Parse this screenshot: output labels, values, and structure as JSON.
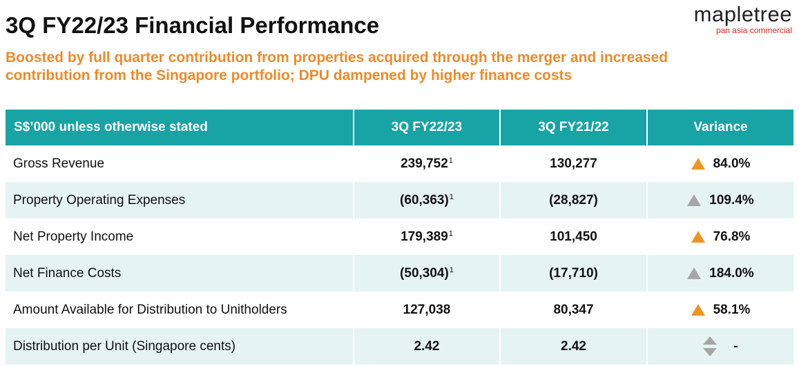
{
  "title": "3Q FY22/23 Financial Performance",
  "logo": {
    "word": "mapletree",
    "sub": "pan asia commercial"
  },
  "subtitle_line1": "Boosted by full quarter contribution from properties acquired through the merger and increased",
  "subtitle_line2": "contribution from the Singapore portfolio; DPU dampened by higher finance costs",
  "colors": {
    "accent": "#ee8a2a",
    "header_bg": "#18a3a5",
    "row_alt": "#e6f3f3",
    "up_arrow": "#f0941e",
    "neutral_arrow": "#a6a6a6"
  },
  "table": {
    "headers": [
      "S$’000 unless otherwise stated",
      "3Q FY22/23",
      "3Q FY21/22",
      "Variance"
    ],
    "rows": [
      {
        "label": "Gross Revenue",
        "current": "239,752",
        "current_note": "1",
        "prior": "130,277",
        "variance": "84.0%",
        "arrow": "up-orange"
      },
      {
        "label": "Property Operating Expenses",
        "current": "(60,363)",
        "current_note": "1",
        "prior": "(28,827)",
        "variance": "109.4%",
        "arrow": "up-grey"
      },
      {
        "label": "Net Property Income",
        "current": "179,389",
        "current_note": "1",
        "prior": "101,450",
        "variance": "76.8%",
        "arrow": "up-orange"
      },
      {
        "label": "Net Finance Costs",
        "current": "(50,304)",
        "current_note": "1",
        "prior": "(17,710)",
        "variance": "184.0%",
        "arrow": "up-grey"
      },
      {
        "label": "Amount Available for Distribution to Unitholders",
        "current": "127,038",
        "current_note": "",
        "prior": "80,347",
        "variance": "58.1%",
        "arrow": "up-orange"
      },
      {
        "label": "Distribution per Unit (Singapore cents)",
        "current": "2.42",
        "current_note": "",
        "prior": "2.42",
        "variance": "-",
        "arrow": "neutral"
      }
    ]
  }
}
